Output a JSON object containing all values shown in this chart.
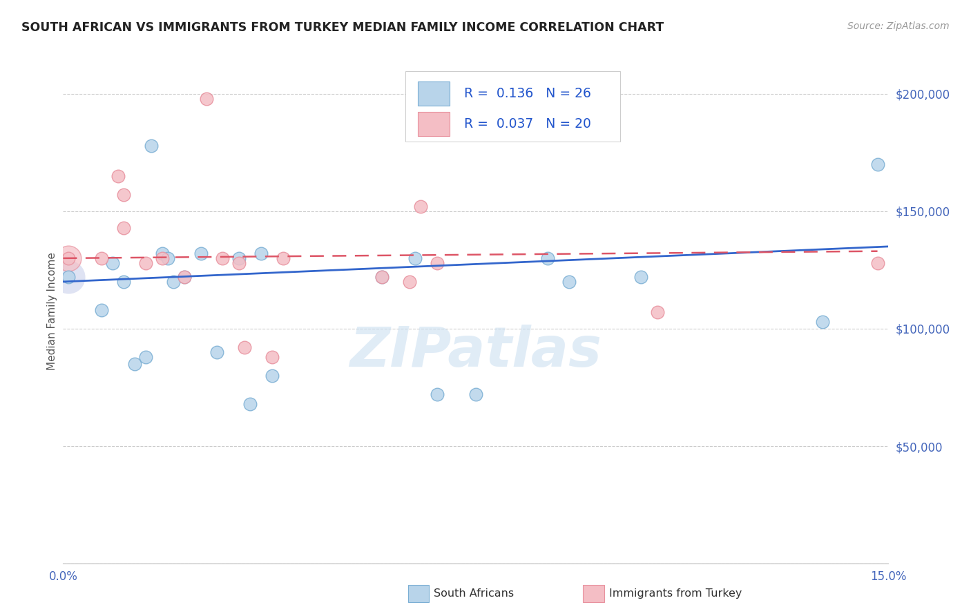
{
  "title": "SOUTH AFRICAN VS IMMIGRANTS FROM TURKEY MEDIAN FAMILY INCOME CORRELATION CHART",
  "source": "Source: ZipAtlas.com",
  "ylabel": "Median Family Income",
  "y_ticks": [
    0,
    50000,
    100000,
    150000,
    200000
  ],
  "y_tick_labels": [
    "",
    "$50,000",
    "$100,000",
    "$150,000",
    "$200,000"
  ],
  "x_min": 0.0,
  "x_max": 0.15,
  "y_min": 0,
  "y_max": 215000,
  "legend_blue_r": "0.136",
  "legend_blue_n": "26",
  "legend_pink_r": "0.037",
  "legend_pink_n": "20",
  "legend_label_blue": "South Africans",
  "legend_label_pink": "Immigrants from Turkey",
  "blue_scatter_x": [
    0.001,
    0.007,
    0.009,
    0.011,
    0.013,
    0.015,
    0.016,
    0.018,
    0.019,
    0.02,
    0.022,
    0.025,
    0.028,
    0.032,
    0.034,
    0.036,
    0.038,
    0.058,
    0.064,
    0.068,
    0.075,
    0.088,
    0.092,
    0.105,
    0.138,
    0.148
  ],
  "blue_scatter_y": [
    122000,
    108000,
    128000,
    120000,
    85000,
    88000,
    178000,
    132000,
    130000,
    120000,
    122000,
    132000,
    90000,
    130000,
    68000,
    132000,
    80000,
    122000,
    130000,
    72000,
    72000,
    130000,
    120000,
    122000,
    103000,
    170000
  ],
  "pink_scatter_x": [
    0.001,
    0.007,
    0.01,
    0.011,
    0.011,
    0.015,
    0.018,
    0.022,
    0.026,
    0.029,
    0.032,
    0.033,
    0.038,
    0.04,
    0.058,
    0.063,
    0.065,
    0.068,
    0.108,
    0.148
  ],
  "pink_scatter_y": [
    130000,
    130000,
    165000,
    143000,
    157000,
    128000,
    130000,
    122000,
    198000,
    130000,
    128000,
    92000,
    88000,
    130000,
    122000,
    120000,
    152000,
    128000,
    107000,
    128000
  ],
  "blue_line_x": [
    0.0,
    0.15
  ],
  "blue_line_y": [
    120000,
    135000
  ],
  "pink_line_x": [
    0.0,
    0.148
  ],
  "pink_line_y": [
    130000,
    133000
  ],
  "watermark": "ZIPatlas",
  "bg_color": "#ffffff",
  "blue_color": "#7bafd4",
  "blue_fill": "#b8d4ea",
  "pink_color": "#e8919e",
  "pink_fill": "#f4bec5",
  "grid_color": "#cccccc",
  "axis_color": "#4466bb",
  "title_color": "#222222"
}
